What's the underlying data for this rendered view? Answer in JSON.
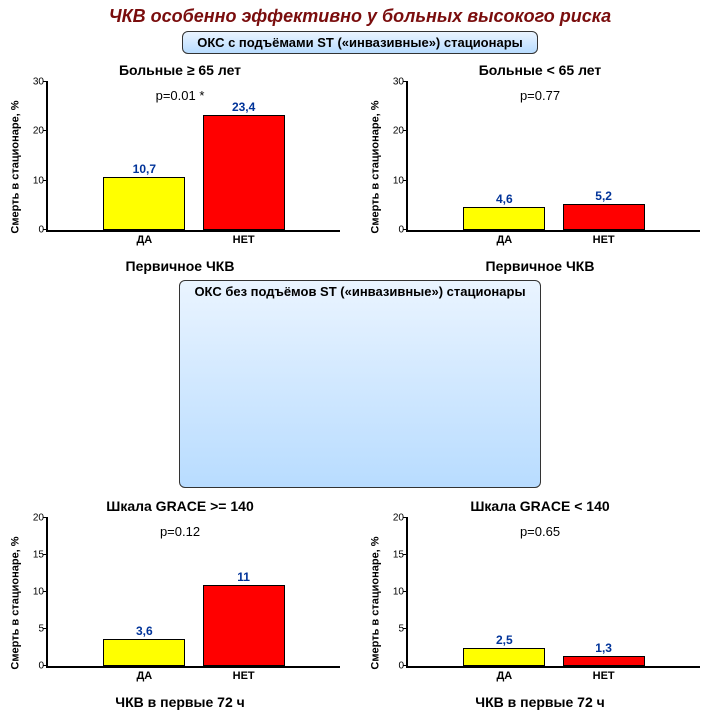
{
  "title": {
    "text": "ЧКВ особенно эффективно у больных высокого риска",
    "color": "#7a0d0d",
    "fontsize": 18
  },
  "banner1": {
    "text": "ОКС с подъёмами ST  («инвазивные») стационары"
  },
  "banner2": {
    "text": "ОКС без подъёмов ST («инвазивные») стационары"
  },
  "common": {
    "ylabel": "Смерть в стационаре, %",
    "cat_da": "ДА",
    "cat_net": "НЕТ",
    "bar_colors": {
      "da": "#ffff00",
      "net": "#ff0000"
    },
    "label_color": "#003399",
    "bar_width_ratio": 0.28,
    "bar_gap_ratio": 0.06,
    "border_color": "#000000",
    "background": "#ffffff"
  },
  "panels": {
    "tl": {
      "subtitle": "Больные ≥ 65 лет",
      "pval": "p=0.01 *",
      "xaxis": "Первичное ЧКВ",
      "ymax": 30,
      "ystep": 10,
      "da": 10.7,
      "net": 23.4,
      "da_label": "10,7",
      "net_label": "23,4"
    },
    "tr": {
      "subtitle": "Больные < 65 лет",
      "pval": "p=0.77",
      "xaxis": "Первичное ЧКВ",
      "ymax": 30,
      "ystep": 10,
      "da": 4.6,
      "net": 5.2,
      "da_label": "4,6",
      "net_label": "5,2"
    },
    "bl": {
      "subtitle": "Шкала GRACE >= 140",
      "pval": "p=0.12",
      "xaxis": "ЧКВ в первые 72 ч",
      "ymax": 20,
      "ystep": 5,
      "da": 3.6,
      "net": 11.0,
      "da_label": "3,6",
      "net_label": "11"
    },
    "br": {
      "subtitle": "Шкала GRACE < 140",
      "pval": "p=0.65",
      "xaxis": "ЧКВ в первые 72 ч",
      "ymax": 20,
      "ystep": 5,
      "da": 2.5,
      "net": 1.3,
      "da_label": "2,5",
      "net_label": "1,3"
    }
  }
}
